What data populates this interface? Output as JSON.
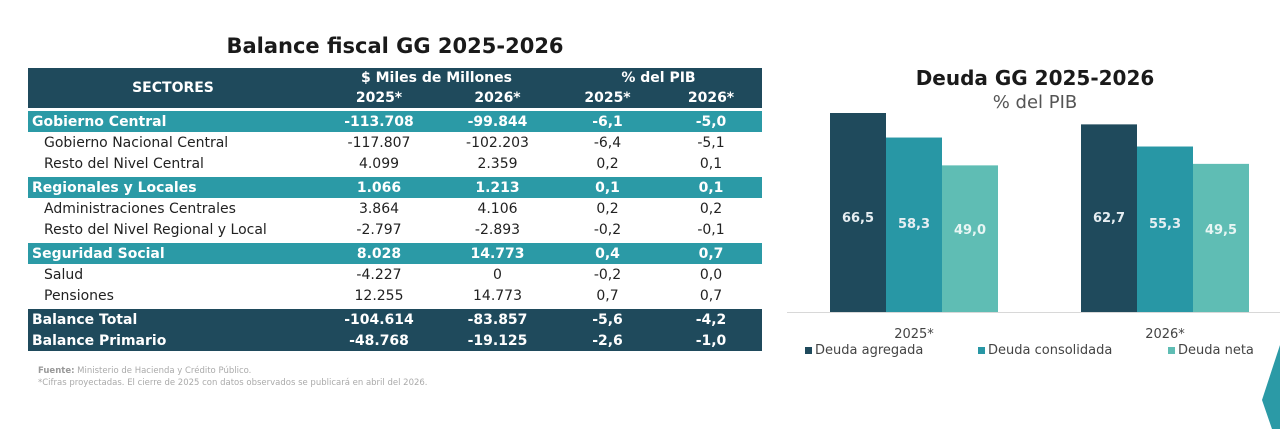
{
  "table": {
    "title": "Balance fiscal GG 2025-2026",
    "header": {
      "sectors": "SECTORES",
      "group1": "$ Miles de Millones",
      "group2": "% del PIB",
      "years": [
        "2025*",
        "2026*",
        "2025*",
        "2026*"
      ]
    },
    "rows": [
      {
        "type": "sec",
        "label": "Gobierno Central",
        "values": [
          "-113.708",
          "-99.844",
          "-6,1",
          "-5,0"
        ]
      },
      {
        "type": "sub",
        "label": "Gobierno Nacional Central",
        "values": [
          "-117.807",
          "-102.203",
          "-6,4",
          "-5,1"
        ]
      },
      {
        "type": "sub",
        "label": "Resto del Nivel Central",
        "values": [
          "4.099",
          "2.359",
          "0,2",
          "0,1"
        ]
      },
      {
        "type": "sec",
        "label": "Regionales y Locales",
        "values": [
          "1.066",
          "1.213",
          "0,1",
          "0,1"
        ]
      },
      {
        "type": "sub",
        "label": "Administraciones Centrales",
        "values": [
          "3.864",
          "4.106",
          "0,2",
          "0,2"
        ]
      },
      {
        "type": "sub",
        "label": "Resto del Nivel Regional y Local",
        "values": [
          "-2.797",
          "-2.893",
          "-0,2",
          "-0,1"
        ]
      },
      {
        "type": "sec",
        "label": "Seguridad Social",
        "values": [
          "8.028",
          "14.773",
          "0,4",
          "0,7"
        ]
      },
      {
        "type": "sub",
        "label": "Salud",
        "values": [
          "-4.227",
          "0",
          "-0,2",
          "0,0"
        ]
      },
      {
        "type": "sub",
        "label": "Pensiones",
        "values": [
          "12.255",
          "14.773",
          "0,7",
          "0,7"
        ]
      },
      {
        "type": "tot",
        "label": "Balance Total",
        "values": [
          "-104.614",
          "-83.857",
          "-5,6",
          "-4,2"
        ]
      },
      {
        "type": "tot",
        "label": "Balance Primario",
        "values": [
          "-48.768",
          "-19.125",
          "-2,6",
          "-1,0"
        ]
      }
    ],
    "source_label": "Fuente:",
    "source": " Ministerio de Hacienda y Crédito Público.",
    "note": "*Cifras proyectadas. El cierre de 2025 con datos observados se publicará en abril del 2026."
  },
  "chart_data": {
    "type": "bar",
    "title": "Deuda GG 2025-2026",
    "subtitle": "% del PIB",
    "categories": [
      "2025*",
      "2026*"
    ],
    "series": [
      {
        "name": "Deuda agregada",
        "values": [
          66.5,
          62.7
        ],
        "labels": [
          "66,5",
          "62,7"
        ],
        "color": "#1f4a5c"
      },
      {
        "name": "Deuda consolidada",
        "values": [
          58.3,
          55.3
        ],
        "labels": [
          "58,3",
          "55,3"
        ],
        "color": "#2897a5"
      },
      {
        "name": "Deuda neta",
        "values": [
          49.0,
          49.5
        ],
        "labels": [
          "49,0",
          "49,5"
        ],
        "color": "#5fbdb4"
      }
    ],
    "ylim": [
      0,
      70
    ],
    "grid": false,
    "legend": "bottom"
  },
  "colors": {
    "dark": "#1f4a5c",
    "teal": "#2b9aa6"
  }
}
